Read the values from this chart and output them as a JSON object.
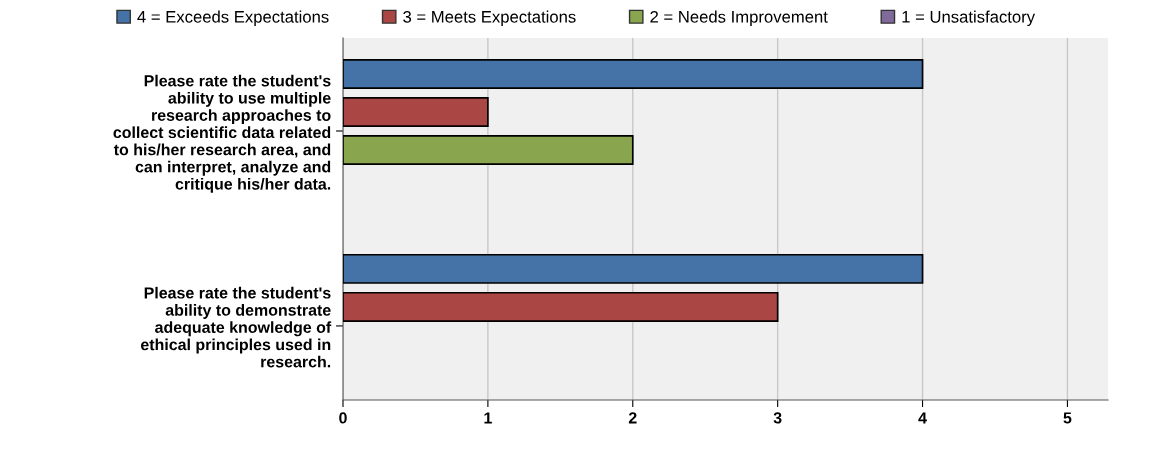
{
  "chart_data": {
    "type": "bar",
    "orientation": "horizontal",
    "categories": [
      "Please rate the student's\nability to use multiple\nresearch approaches to\ncollect scientific data related\nto his/her research area, and\ncan interpret, analyze and\ncritique his/her data.",
      "Please rate the student's\nability to demonstrate\nadequate knowledge of\nethical principles used in\nresearch."
    ],
    "series": [
      {
        "name": "4 = Exceeds Expectations",
        "color": "#4572a7",
        "values": [
          4,
          4
        ]
      },
      {
        "name": "3 = Meets Expectations",
        "color": "#aa4643",
        "values": [
          1,
          3
        ]
      },
      {
        "name": "2 = Needs Improvement",
        "color": "#89a54e",
        "values": [
          2,
          null
        ]
      },
      {
        "name": "1 = Unsatisfactory",
        "color": "#80699b",
        "values": [
          null,
          null
        ]
      }
    ],
    "xlim": [
      0,
      5.28
    ],
    "xticks": [
      0,
      1,
      2,
      3,
      4,
      5
    ],
    "grid": "x",
    "legend": "top"
  }
}
